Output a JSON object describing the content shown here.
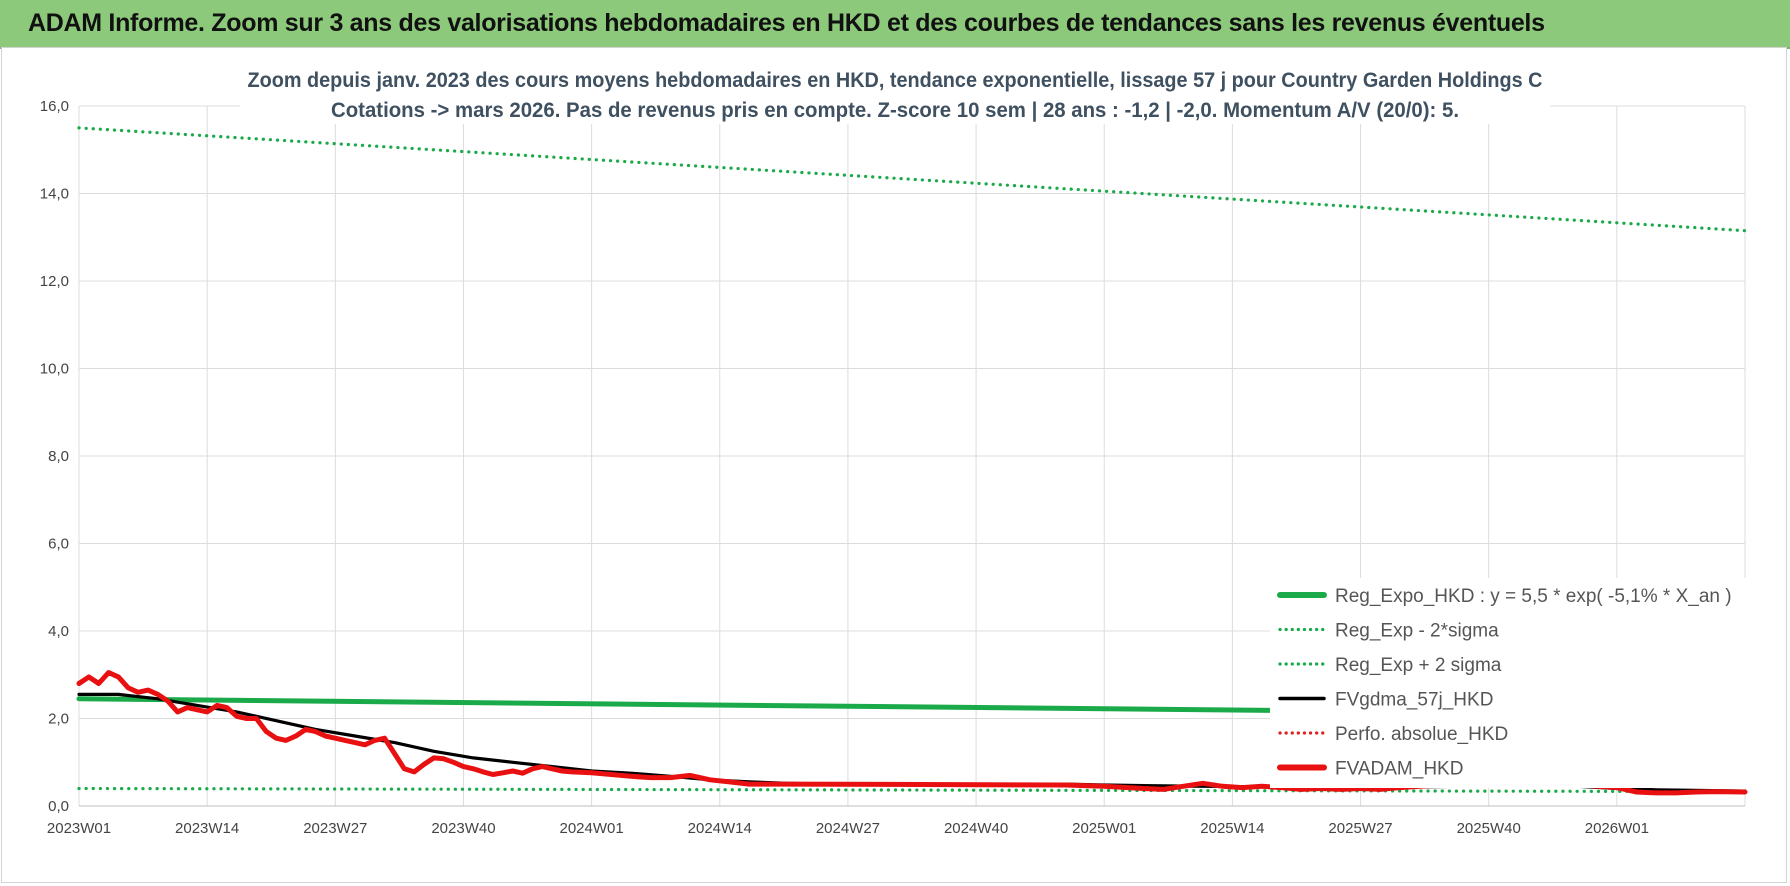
{
  "header": {
    "title": "ADAM Informe. Zoom sur 3 ans des valorisations hebdomadaires en HKD et des courbes de tendances sans les revenus éventuels"
  },
  "chart_data": {
    "type": "line",
    "subtitle_lines": [
      "Zoom depuis janv. 2023 des cours moyens hebdomadaires en HKD, tendance exponentielle, lissage 57 j pour Country Garden Holdings C",
      "Cotations -> mars 2026. Pas de revenus pris en compte. Z-score 10 sem | 28 ans : -1,2 | -2,0. Momentum A/V (20/0): 5."
    ],
    "ylim": [
      0,
      16
    ],
    "y_ticks": [
      "0,0",
      "2,0",
      "4,0",
      "6,0",
      "8,0",
      "10,0",
      "12,0",
      "14,0",
      "16,0"
    ],
    "x_ticks": [
      {
        "label": "2023W01",
        "index": 0
      },
      {
        "label": "2023W14",
        "index": 13
      },
      {
        "label": "2023W27",
        "index": 26
      },
      {
        "label": "2023W40",
        "index": 39
      },
      {
        "label": "2024W01",
        "index": 52
      },
      {
        "label": "2024W14",
        "index": 65
      },
      {
        "label": "2024W27",
        "index": 78
      },
      {
        "label": "2024W40",
        "index": 91
      },
      {
        "label": "2025W01",
        "index": 104
      },
      {
        "label": "2025W14",
        "index": 117
      },
      {
        "label": "2025W27",
        "index": 130
      },
      {
        "label": "2025W40",
        "index": 143
      },
      {
        "label": "2026W01",
        "index": 156
      }
    ],
    "x_count": 170,
    "grid": true,
    "legend_position": "bottom-right",
    "series": [
      {
        "name": "Reg_Expo_HKD : y = 5,5 * exp( -5,1% *  X_an )",
        "style": "solid-thick",
        "color": "#1aaa4a",
        "points": [
          [
            0,
            2.45
          ],
          [
            169,
            2.08
          ]
        ]
      },
      {
        "name": "Reg_Exp - 2*sigma",
        "style": "dotted",
        "color": "#1aaa4a",
        "points": [
          [
            0,
            0.4
          ],
          [
            169,
            0.33
          ]
        ]
      },
      {
        "name": "Reg_Exp + 2 sigma",
        "style": "dotted",
        "color": "#1aaa4a",
        "points": [
          [
            0,
            15.5
          ],
          [
            169,
            13.15
          ]
        ]
      },
      {
        "name": "FVgdma_57j_HKD",
        "style": "solid",
        "color": "#000000",
        "points": [
          [
            0,
            2.55
          ],
          [
            4,
            2.55
          ],
          [
            8,
            2.45
          ],
          [
            12,
            2.3
          ],
          [
            16,
            2.15
          ],
          [
            20,
            1.95
          ],
          [
            24,
            1.75
          ],
          [
            28,
            1.6
          ],
          [
            32,
            1.45
          ],
          [
            36,
            1.25
          ],
          [
            40,
            1.1
          ],
          [
            44,
            1.0
          ],
          [
            48,
            0.9
          ],
          [
            52,
            0.8
          ],
          [
            56,
            0.75
          ],
          [
            60,
            0.68
          ],
          [
            64,
            0.6
          ],
          [
            68,
            0.55
          ],
          [
            72,
            0.52
          ],
          [
            76,
            0.5
          ],
          [
            80,
            0.5
          ],
          [
            100,
            0.5
          ],
          [
            104,
            0.48
          ],
          [
            110,
            0.46
          ],
          [
            120,
            0.44
          ],
          [
            130,
            0.42
          ],
          [
            140,
            0.45
          ],
          [
            148,
            0.48
          ],
          [
            152,
            0.45
          ],
          [
            156,
            0.4
          ],
          [
            160,
            0.37
          ],
          [
            164,
            0.36
          ],
          [
            169,
            0.34
          ]
        ]
      },
      {
        "name": "Perfo. absolue_HKD",
        "style": "dotted",
        "color": "#e02020",
        "points": []
      },
      {
        "name": "FVADAM_HKD",
        "style": "solid-thick",
        "color": "#e81010",
        "points": [
          [
            0,
            2.8
          ],
          [
            1,
            2.95
          ],
          [
            2,
            2.8
          ],
          [
            3,
            3.05
          ],
          [
            4,
            2.95
          ],
          [
            5,
            2.7
          ],
          [
            6,
            2.6
          ],
          [
            7,
            2.65
          ],
          [
            8,
            2.55
          ],
          [
            9,
            2.4
          ],
          [
            10,
            2.15
          ],
          [
            11,
            2.25
          ],
          [
            12,
            2.2
          ],
          [
            13,
            2.15
          ],
          [
            14,
            2.3
          ],
          [
            15,
            2.25
          ],
          [
            16,
            2.05
          ],
          [
            17,
            2.0
          ],
          [
            18,
            2.0
          ],
          [
            19,
            1.7
          ],
          [
            20,
            1.55
          ],
          [
            21,
            1.5
          ],
          [
            22,
            1.6
          ],
          [
            23,
            1.75
          ],
          [
            24,
            1.7
          ],
          [
            25,
            1.6
          ],
          [
            26,
            1.55
          ],
          [
            27,
            1.5
          ],
          [
            28,
            1.45
          ],
          [
            29,
            1.4
          ],
          [
            30,
            1.5
          ],
          [
            31,
            1.55
          ],
          [
            32,
            1.2
          ],
          [
            33,
            0.85
          ],
          [
            34,
            0.78
          ],
          [
            35,
            0.95
          ],
          [
            36,
            1.1
          ],
          [
            37,
            1.08
          ],
          [
            38,
            1.0
          ],
          [
            39,
            0.9
          ],
          [
            40,
            0.85
          ],
          [
            41,
            0.78
          ],
          [
            42,
            0.72
          ],
          [
            43,
            0.76
          ],
          [
            44,
            0.8
          ],
          [
            45,
            0.75
          ],
          [
            46,
            0.85
          ],
          [
            47,
            0.9
          ],
          [
            48,
            0.85
          ],
          [
            49,
            0.8
          ],
          [
            50,
            0.78
          ],
          [
            52,
            0.76
          ],
          [
            54,
            0.72
          ],
          [
            56,
            0.68
          ],
          [
            58,
            0.65
          ],
          [
            60,
            0.65
          ],
          [
            62,
            0.7
          ],
          [
            64,
            0.6
          ],
          [
            66,
            0.55
          ],
          [
            68,
            0.5
          ],
          [
            72,
            0.5
          ],
          [
            100,
            0.48
          ],
          [
            104,
            0.45
          ],
          [
            108,
            0.4
          ],
          [
            110,
            0.38
          ],
          [
            112,
            0.45
          ],
          [
            114,
            0.52
          ],
          [
            116,
            0.45
          ],
          [
            118,
            0.42
          ],
          [
            120,
            0.45
          ],
          [
            122,
            0.42
          ],
          [
            124,
            0.38
          ],
          [
            126,
            0.4
          ],
          [
            128,
            0.38
          ],
          [
            130,
            0.4
          ],
          [
            132,
            0.38
          ],
          [
            134,
            0.42
          ],
          [
            136,
            0.45
          ],
          [
            138,
            0.48
          ],
          [
            140,
            0.52
          ],
          [
            141,
            0.65
          ],
          [
            142,
            0.6
          ],
          [
            144,
            0.55
          ],
          [
            146,
            0.6
          ],
          [
            148,
            0.55
          ],
          [
            150,
            0.55
          ],
          [
            152,
            0.5
          ],
          [
            154,
            0.45
          ],
          [
            156,
            0.42
          ],
          [
            158,
            0.32
          ],
          [
            160,
            0.3
          ],
          [
            162,
            0.3
          ],
          [
            164,
            0.32
          ],
          [
            166,
            0.33
          ],
          [
            169,
            0.32
          ]
        ]
      }
    ]
  }
}
